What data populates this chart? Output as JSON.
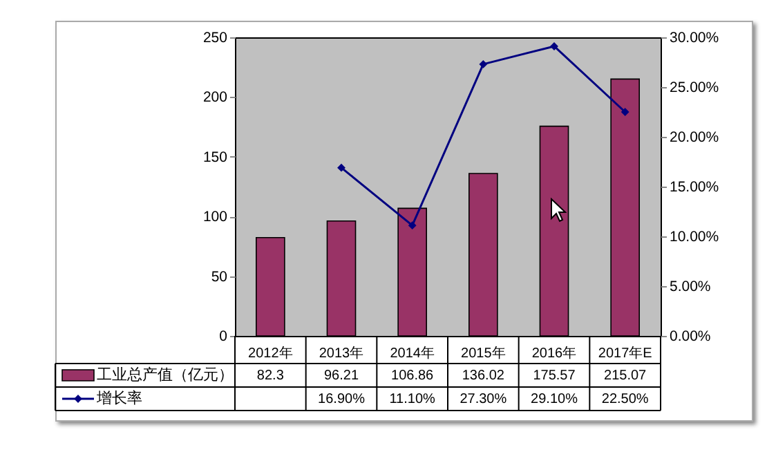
{
  "chart_data": {
    "type": "bar",
    "categories": [
      "2012年",
      "2013年",
      "2014年",
      "2015年",
      "2016年",
      "2017年E"
    ],
    "series": [
      {
        "name": "工业总产值（亿元）",
        "color": "#993366",
        "values": [
          82.3,
          96.21,
          106.86,
          136.02,
          175.57,
          215.07
        ],
        "value_labels": [
          "82.3",
          "96.21",
          "106.86",
          "136.02",
          "175.57",
          "215.07"
        ]
      },
      {
        "name": "增长率",
        "type": "line",
        "axis": "y2",
        "color": "#000080",
        "values": [
          null,
          16.9,
          11.1,
          27.3,
          29.1,
          22.5
        ],
        "value_labels": [
          null,
          "16.90%",
          "11.10%",
          "27.30%",
          "29.10%",
          "22.50%"
        ]
      }
    ],
    "ylim": [
      0,
      250
    ],
    "yticks": [
      0,
      50,
      100,
      150,
      200,
      250
    ],
    "y2lim": [
      0,
      30
    ],
    "y2ticks": [
      {
        "value": 0,
        "label": "0.00%"
      },
      {
        "value": 5,
        "label": "5.00%"
      },
      {
        "value": 10,
        "label": "10.00%"
      },
      {
        "value": 15,
        "label": "15.00%"
      },
      {
        "value": 20,
        "label": "20.00%"
      },
      {
        "value": 25,
        "label": "25.00%"
      },
      {
        "value": 30,
        "label": "30.00%"
      }
    ],
    "marker": "diamond",
    "legend": "bottom"
  }
}
